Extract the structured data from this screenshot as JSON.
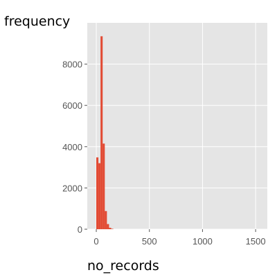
{
  "chart_data": {
    "type": "bar",
    "title": "",
    "xlabel": "no_records",
    "ylabel": "frequency",
    "xlim": [
      -85,
      1610
    ],
    "ylim": [
      0,
      10000
    ],
    "x_ticks": [
      0,
      500,
      1000,
      1500
    ],
    "y_ticks": [
      0,
      2000,
      4000,
      6000,
      8000
    ],
    "grid": true,
    "bar_color": "#e24a33",
    "plot_background": "#e5e5e5",
    "bins": [
      {
        "x0": 0,
        "x1": 20,
        "count": 3480
      },
      {
        "x0": 20,
        "x1": 40,
        "count": 3200
      },
      {
        "x0": 40,
        "x1": 60,
        "count": 9350
      },
      {
        "x0": 60,
        "x1": 80,
        "count": 4150
      },
      {
        "x0": 80,
        "x1": 100,
        "count": 880
      },
      {
        "x0": 100,
        "x1": 120,
        "count": 250
      },
      {
        "x0": 120,
        "x1": 140,
        "count": 70
      },
      {
        "x0": 140,
        "x1": 160,
        "count": 20
      }
    ]
  }
}
